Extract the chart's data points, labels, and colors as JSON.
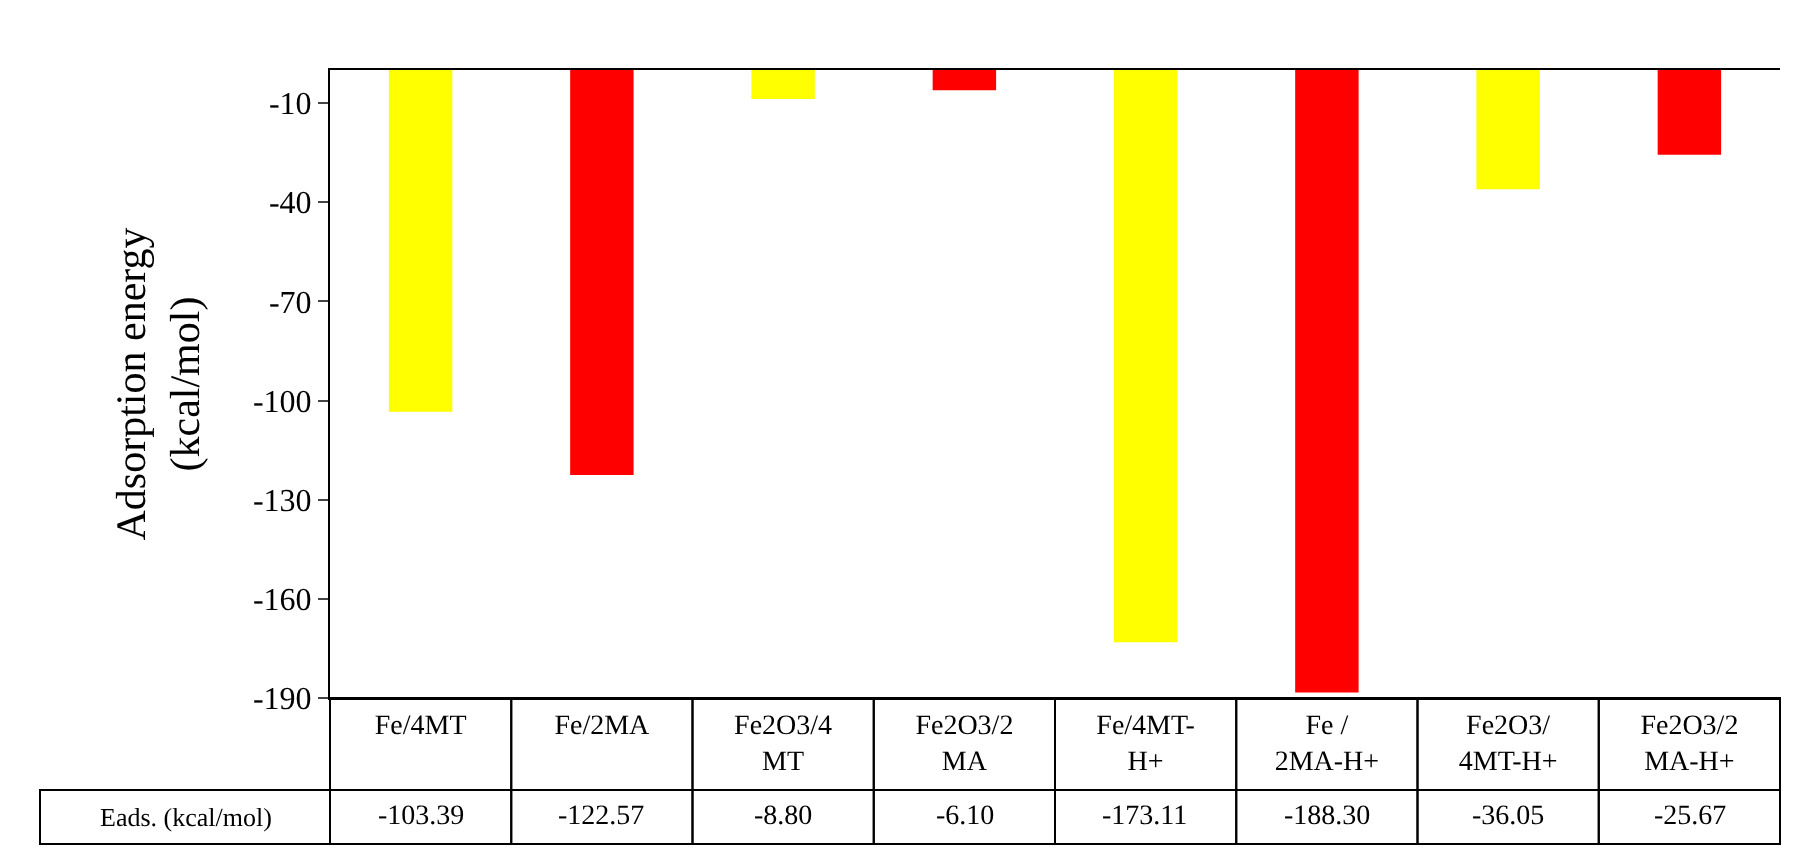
{
  "chart_data": {
    "type": "bar",
    "ylabel": "Adsorption energy\n(kcal/mol)",
    "categories": [
      "Fe/4MT",
      "Fe/2MA",
      "Fe2O3/4\nMT",
      "Fe2O3/2\nMA",
      "Fe/4MT-\nH+",
      "Fe /\n2MA-H+",
      "Fe2O3/\n4MT-H+",
      "Fe2O3/2\nMA-H+"
    ],
    "values": [
      -103.39,
      -122.57,
      -8.8,
      -6.1,
      -173.11,
      -188.3,
      -36.05,
      -25.67
    ],
    "value_labels": [
      "-103.39",
      "-122.57",
      "-8.80",
      "-6.10",
      "-173.11",
      "-188.30",
      "-36.05",
      "-25.67"
    ],
    "colors": [
      "#ffff00",
      "#ff0000",
      "#ffff00",
      "#ff0000",
      "#ffff00",
      "#ff0000",
      "#ffff00",
      "#ff0000"
    ],
    "annotations": [
      "Eads. (kcal/mol)"
    ],
    "ylim": [
      -190,
      0
    ],
    "yticks": [
      -10,
      -40,
      -70,
      -100,
      -130,
      -160,
      -190
    ],
    "legend": false
  }
}
